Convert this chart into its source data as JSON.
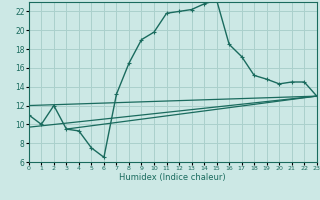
{
  "xlabel": "Humidex (Indice chaleur)",
  "xlim": [
    0,
    23
  ],
  "ylim": [
    6,
    23
  ],
  "yticks": [
    6,
    8,
    10,
    12,
    14,
    16,
    18,
    20,
    22
  ],
  "xticks": [
    0,
    1,
    2,
    3,
    4,
    5,
    6,
    7,
    8,
    9,
    10,
    11,
    12,
    13,
    14,
    15,
    16,
    17,
    18,
    19,
    20,
    21,
    22,
    23
  ],
  "bg_color": "#cce8e5",
  "grid_color": "#aad0cc",
  "line_color": "#1a6b5e",
  "curve_x": [
    0,
    1,
    2,
    3,
    4,
    5,
    6,
    7,
    8,
    9,
    10,
    11,
    12,
    13,
    14,
    15,
    16,
    17,
    18,
    19,
    20,
    21,
    22,
    23
  ],
  "curve_y": [
    11.0,
    10.0,
    12.0,
    9.5,
    9.3,
    7.5,
    6.5,
    13.2,
    16.5,
    19.0,
    19.8,
    21.8,
    22.0,
    22.2,
    22.8,
    23.2,
    18.5,
    17.2,
    15.2,
    14.8,
    14.3,
    14.5,
    14.5,
    13.0
  ],
  "line1_x": [
    0,
    23
  ],
  "line1_y": [
    12.0,
    13.0
  ],
  "line2_x": [
    0,
    23
  ],
  "line2_y": [
    9.7,
    13.0
  ],
  "line3_x": [
    3,
    23
  ],
  "line3_y": [
    9.5,
    13.0
  ]
}
